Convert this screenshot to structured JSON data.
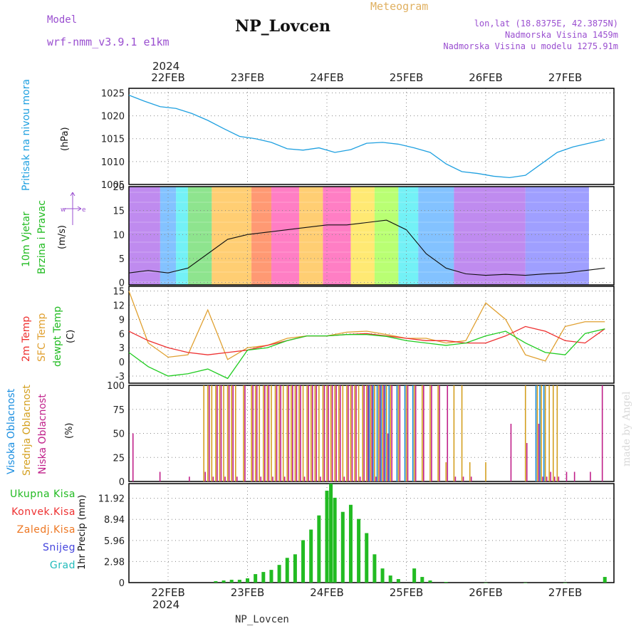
{
  "header": {
    "title": "NP_Lovcen",
    "model_label": "Model",
    "model_name": "wrf-nmm_v3.9.1 e1km",
    "meteogram": "Meteogram",
    "lonlat": "lon,lat (18.8375E, 42.3875N)",
    "altitude": "Nadmorska Visina 1459m",
    "model_altitude": "Nadmorska Visina u modelu 1275.91m",
    "bottom_title": "NP_Lovcen",
    "watermark": "made by Angel"
  },
  "axis": {
    "dates": [
      "22FEB",
      "23FEB",
      "24FEB",
      "25FEB",
      "26FEB",
      "27FEB"
    ],
    "year": "2024"
  },
  "panel_labels": {
    "pressure": {
      "name": "Pritisak na nivou mora",
      "unit": "(hPa)"
    },
    "wind": {
      "name1": "10m Vjetar",
      "name2": "Brzina i Pravac",
      "unit": "(m/s)"
    },
    "temp": {
      "name1": "2m Temp",
      "name2": "SFC Temp",
      "name3": "dewpt Temp",
      "unit": "(C)"
    },
    "cloud": {
      "name1": "Visoka Oblacnost",
      "name2": "Srednja Oblacnost",
      "name3": "Niska Oblacnost",
      "unit": "(%)"
    },
    "precip": {
      "unit": "1hr Precip (mm)",
      "legend": [
        "Ukupna Kisa",
        "Konvek.Kisa",
        "Zaledj.Kisa",
        "Snijeg",
        "Grad"
      ]
    }
  },
  "colors": {
    "pressure": "#1fa0e0",
    "t2m": "#ee3030",
    "sfc": "#e0a030",
    "dew": "#20cc20",
    "high": "#1a8ee0",
    "mid": "#d4a020",
    "low": "#c0208a",
    "purple": "#9a4fd0",
    "precip": "#22bb22",
    "conv": "#ee3030",
    "frz": "#ee7722",
    "snow": "#4444dd",
    "hail": "#22bbbb"
  },
  "chart_data": [
    {
      "type": "line",
      "title": "Pritisak na nivou mora",
      "ylabel": "(hPa)",
      "yticks": [
        "1005",
        "1010",
        "1015",
        "1020",
        "1025"
      ],
      "ylim": [
        1005,
        1026
      ],
      "x": [
        0,
        0.2,
        0.4,
        0.6,
        0.8,
        1.0,
        1.2,
        1.4,
        1.6,
        1.8,
        2.0,
        2.2,
        2.4,
        2.6,
        2.8,
        3.0,
        3.2,
        3.4,
        3.6,
        3.8,
        4.0,
        4.2,
        4.4,
        4.6,
        4.8,
        5.0,
        5.2,
        5.4,
        5.6,
        5.8,
        6.0
      ],
      "series": [
        {
          "values": [
            1024.5,
            1023.2,
            1022.0,
            1021.6,
            1020.5,
            1019.0,
            1017.2,
            1015.5,
            1015.0,
            1014.2,
            1012.8,
            1012.5,
            1013.0,
            1012.0,
            1012.6,
            1014.0,
            1014.2,
            1013.8,
            1013.0,
            1012.0,
            1009.5,
            1007.8,
            1007.4,
            1006.8,
            1006.5,
            1007.0,
            1009.5,
            1012.0,
            1013.2,
            1014.0,
            1014.8
          ]
        }
      ]
    },
    {
      "type": "line",
      "title": "10m Vjetar Brzina i Pravac",
      "ylabel": "(m/s)",
      "yticks": [
        "0",
        "5",
        "10",
        "15",
        "20"
      ],
      "ylim": [
        -0.5,
        20
      ],
      "x": [
        0,
        0.25,
        0.5,
        0.75,
        1.0,
        1.25,
        1.5,
        1.75,
        2.0,
        2.25,
        2.5,
        2.75,
        3.0,
        3.25,
        3.5,
        3.75,
        4.0,
        4.25,
        4.5,
        4.75,
        5.0,
        5.25,
        5.5,
        5.75,
        6.0
      ],
      "series": [
        {
          "values": [
            2,
            2.5,
            2,
            3,
            6,
            9,
            10,
            10.5,
            11,
            11.5,
            12,
            12,
            12.5,
            13,
            11,
            6,
            3,
            1.8,
            1.5,
            1.7,
            1.5,
            1.8,
            2,
            2.5,
            3
          ]
        }
      ]
    },
    {
      "type": "line",
      "title": "2m Temp / SFC Temp / dewpt Temp",
      "ylabel": "(C)",
      "yticks": [
        "-3",
        "0",
        "3",
        "6",
        "9",
        "12",
        "15"
      ],
      "ylim": [
        -4.5,
        16
      ],
      "x": [
        0,
        0.25,
        0.5,
        0.75,
        1.0,
        1.25,
        1.5,
        1.75,
        2.0,
        2.25,
        2.5,
        2.75,
        3.0,
        3.25,
        3.5,
        3.75,
        4.0,
        4.25,
        4.5,
        4.75,
        5.0,
        5.25,
        5.5,
        5.75,
        6.0
      ],
      "series": [
        {
          "name": "2m Temp",
          "values": [
            6.5,
            4.5,
            3,
            2,
            1.5,
            2,
            2.5,
            3.5,
            4.5,
            5.5,
            5.5,
            5.8,
            6,
            5.5,
            5,
            4.5,
            4.5,
            4,
            4,
            5.5,
            7.5,
            6.5,
            4.5,
            4,
            7
          ]
        },
        {
          "name": "SFC Temp",
          "values": [
            15,
            4,
            1,
            1.5,
            11,
            0.5,
            3,
            3.5,
            5,
            5.5,
            5.5,
            6.3,
            6.5,
            5.8,
            5,
            5,
            4,
            4.5,
            12.5,
            9,
            1.5,
            0.2,
            7.5,
            8.5,
            8.5
          ]
        },
        {
          "name": "dewpt Temp",
          "values": [
            2,
            -1,
            -3,
            -2.5,
            -1.5,
            -3.5,
            2.5,
            3,
            4.5,
            5.5,
            5.5,
            5.8,
            5.8,
            5.4,
            4.5,
            4,
            3.5,
            4,
            5.5,
            6.5,
            4,
            2,
            1.5,
            6,
            7
          ]
        }
      ]
    },
    {
      "type": "bar",
      "title": "Visoka / Srednja / Niska Oblacnost",
      "ylabel": "(%)",
      "yticks": [
        "0",
        "25",
        "50",
        "75",
        "100"
      ],
      "ylim": [
        0,
        100
      ],
      "x": [
        0.04,
        0.38,
        0.75,
        0.95,
        1.0,
        1.05,
        1.1,
        1.15,
        1.2,
        1.25,
        1.3,
        1.35,
        1.45,
        1.55,
        1.6,
        1.65,
        1.7,
        1.75,
        1.8,
        1.85,
        1.9,
        1.95,
        2.0,
        2.05,
        2.1,
        2.15,
        2.2,
        2.25,
        2.3,
        2.35,
        2.4,
        2.45,
        2.5,
        2.55,
        2.6,
        2.65,
        2.7,
        2.75,
        2.8,
        2.85,
        2.9,
        2.95,
        3.0,
        3.05,
        3.1,
        3.15,
        3.2,
        3.25,
        3.3,
        3.4,
        3.5,
        3.6,
        3.7,
        3.8,
        3.9,
        4.0,
        4.1,
        4.2,
        4.3,
        4.5,
        4.8,
        5.0,
        5.15,
        5.2,
        5.25,
        5.3,
        5.35,
        5.4,
        5.5,
        5.6,
        5.8,
        5.95
      ],
      "series": [
        {
          "name": "Visoka Oblacnost",
          "values": [
            0,
            0,
            0,
            0,
            0,
            0,
            0,
            0,
            0,
            0,
            0,
            0,
            0,
            0,
            0,
            0,
            0,
            0,
            0,
            0,
            0,
            0,
            0,
            0,
            0,
            0,
            0,
            0,
            0,
            0,
            0,
            0,
            0,
            0,
            0,
            0,
            0,
            0,
            0,
            0,
            0,
            0,
            0,
            100,
            100,
            100,
            100,
            100,
            100,
            100,
            100,
            100,
            0,
            0,
            0,
            0,
            0,
            0,
            0,
            0,
            0,
            0,
            100,
            100,
            100,
            0,
            0,
            0,
            0,
            0,
            0,
            0
          ]
        },
        {
          "name": "Srednja Oblacnost",
          "values": [
            0,
            0,
            0,
            100,
            100,
            100,
            100,
            100,
            100,
            100,
            100,
            100,
            100,
            100,
            100,
            100,
            100,
            100,
            100,
            100,
            100,
            100,
            100,
            100,
            100,
            100,
            100,
            100,
            100,
            100,
            100,
            100,
            100,
            100,
            100,
            100,
            100,
            100,
            100,
            100,
            100,
            100,
            100,
            100,
            100,
            100,
            100,
            100,
            100,
            100,
            100,
            100,
            100,
            100,
            100,
            20,
            100,
            100,
            20,
            20,
            0,
            100,
            100,
            100,
            100,
            100,
            100,
            100,
            0,
            0,
            0,
            0
          ]
        },
        {
          "name": "Niska Oblacnost",
          "values": [
            50,
            10,
            5,
            10,
            100,
            5,
            100,
            100,
            5,
            100,
            100,
            5,
            100,
            100,
            100,
            5,
            100,
            100,
            5,
            100,
            100,
            5,
            100,
            100,
            100,
            100,
            5,
            100,
            100,
            100,
            5,
            100,
            100,
            100,
            100,
            100,
            5,
            100,
            100,
            100,
            5,
            100,
            100,
            100,
            5,
            100,
            100,
            50,
            100,
            100,
            100,
            100,
            100,
            100,
            100,
            100,
            5,
            5,
            5,
            0,
            60,
            40,
            60,
            5,
            5,
            10,
            5,
            5,
            10,
            10,
            10,
            100
          ]
        }
      ]
    },
    {
      "type": "bar",
      "title": "1hr Precip",
      "ylabel": "1hr Precip (mm)",
      "yticks": [
        "0",
        "2.98",
        "5.96",
        "8.94",
        "11.92"
      ],
      "ylim": [
        0,
        14
      ],
      "x": [
        1.1,
        1.2,
        1.3,
        1.4,
        1.5,
        1.6,
        1.7,
        1.8,
        1.9,
        2.0,
        2.1,
        2.2,
        2.3,
        2.4,
        2.5,
        2.55,
        2.6,
        2.7,
        2.8,
        2.9,
        3.0,
        3.1,
        3.2,
        3.3,
        3.4,
        3.6,
        3.7,
        3.8,
        4.0,
        4.5,
        5.0,
        5.5,
        6.0
      ],
      "series": [
        {
          "name": "Ukupna Kisa",
          "values": [
            0.2,
            0.3,
            0.4,
            0.4,
            0.6,
            1.2,
            1.5,
            1.8,
            2.5,
            3.5,
            4.0,
            6.0,
            7.5,
            9.5,
            13.0,
            14.0,
            12.0,
            10.0,
            11.0,
            9.0,
            7.0,
            4.0,
            2.0,
            1.0,
            0.5,
            2.0,
            0.8,
            0.3,
            0.1,
            0.0,
            0.0,
            0.0,
            0.8
          ]
        }
      ]
    }
  ]
}
